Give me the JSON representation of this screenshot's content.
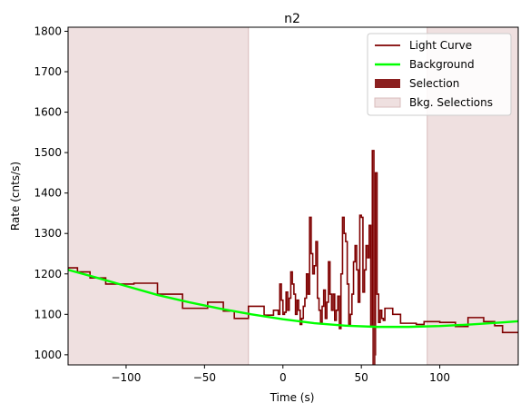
{
  "chart_data": {
    "type": "line",
    "title": "n2",
    "xlabel": "Time (s)",
    "ylabel": "Rate (cnts/s)",
    "xlim": [
      -137,
      150
    ],
    "ylim": [
      975,
      1810
    ],
    "xticks": [
      -100,
      -50,
      0,
      50,
      100
    ],
    "yticks": [
      1000,
      1100,
      1200,
      1300,
      1400,
      1500,
      1600,
      1700,
      1800
    ],
    "grid": false,
    "legend_position": "top-right",
    "colors": {
      "light_curve": "#7f0000",
      "background": "#00ff00",
      "selection": "#8b2020",
      "bkg_selection": "#efe0e0",
      "bkg_selection_edge": "#d9bcbc"
    },
    "series": [
      {
        "name": "Light Curve",
        "type": "step",
        "points": [
          [
            -137,
            1215
          ],
          [
            -131,
            1205
          ],
          [
            -123,
            1190
          ],
          [
            -113,
            1175
          ],
          [
            -95,
            1177
          ],
          [
            -80,
            1150
          ],
          [
            -64,
            1115
          ],
          [
            -52,
            1115
          ],
          [
            -48,
            1130
          ],
          [
            -38,
            1108
          ],
          [
            -31,
            1090
          ],
          [
            -22,
            1120
          ],
          [
            -14,
            1120
          ],
          [
            -12,
            1098
          ],
          [
            -6,
            1110
          ],
          [
            -3,
            1100
          ],
          [
            -2,
            1175
          ],
          [
            -1,
            1135
          ],
          [
            0,
            1100
          ],
          [
            1,
            1105
          ],
          [
            2,
            1155
          ],
          [
            3,
            1110
          ],
          [
            4,
            1140
          ],
          [
            5,
            1205
          ],
          [
            6,
            1175
          ],
          [
            7,
            1150
          ],
          [
            8,
            1100
          ],
          [
            9,
            1135
          ],
          [
            10,
            1110
          ],
          [
            11,
            1075
          ],
          [
            12,
            1090
          ],
          [
            13,
            1120
          ],
          [
            14,
            1140
          ],
          [
            15,
            1200
          ],
          [
            16,
            1150
          ],
          [
            17,
            1340
          ],
          [
            18,
            1250
          ],
          [
            19,
            1200
          ],
          [
            20,
            1220
          ],
          [
            21,
            1280
          ],
          [
            22,
            1140
          ],
          [
            23,
            1110
          ],
          [
            24,
            1080
          ],
          [
            25,
            1120
          ],
          [
            26,
            1160
          ],
          [
            27,
            1090
          ],
          [
            28,
            1130
          ],
          [
            29,
            1230
          ],
          [
            30,
            1150
          ],
          [
            31,
            1110
          ],
          [
            32,
            1150
          ],
          [
            33,
            1085
          ],
          [
            34,
            1110
          ],
          [
            35,
            1145
          ],
          [
            36,
            1065
          ],
          [
            37,
            1200
          ],
          [
            38,
            1340
          ],
          [
            39,
            1300
          ],
          [
            40,
            1280
          ],
          [
            41,
            1175
          ],
          [
            42,
            1075
          ],
          [
            43,
            1100
          ],
          [
            44,
            1150
          ],
          [
            45,
            1230
          ],
          [
            46,
            1270
          ],
          [
            47,
            1210
          ],
          [
            48,
            1130
          ],
          [
            49,
            1345
          ],
          [
            50,
            1340
          ],
          [
            51,
            1155
          ],
          [
            52,
            1210
          ],
          [
            53,
            1270
          ],
          [
            54,
            1240
          ],
          [
            55,
            1320
          ],
          [
            56,
            1070
          ],
          [
            57,
            1505
          ],
          [
            58,
            1000
          ],
          [
            59,
            1450
          ],
          [
            60,
            1150
          ],
          [
            61,
            1080
          ],
          [
            62,
            1110
          ],
          [
            63,
            1090
          ],
          [
            64,
            1085
          ],
          [
            65,
            1115
          ],
          [
            70,
            1100
          ],
          [
            75,
            1078
          ],
          [
            85,
            1075
          ],
          [
            90,
            1082
          ],
          [
            100,
            1080
          ],
          [
            110,
            1070
          ],
          [
            118,
            1092
          ],
          [
            128,
            1082
          ],
          [
            135,
            1072
          ],
          [
            140,
            1055
          ],
          [
            150,
            1055
          ]
        ]
      },
      {
        "name": "Background",
        "type": "curve",
        "x": [
          -137,
          -120,
          -100,
          -80,
          -60,
          -40,
          -20,
          0,
          20,
          40,
          60,
          80,
          100,
          120,
          140,
          150
        ],
        "y": [
          1210,
          1192,
          1170,
          1148,
          1130,
          1114,
          1100,
          1088,
          1078,
          1072,
          1069,
          1069,
          1071,
          1075,
          1080,
          1083
        ]
      },
      {
        "name": "Selection",
        "type": "span",
        "range": [
          57,
          59
        ]
      },
      {
        "name": "Bkg. Selections",
        "type": "spans",
        "ranges": [
          [
            -137,
            -22
          ],
          [
            92,
            150
          ]
        ]
      }
    ]
  }
}
